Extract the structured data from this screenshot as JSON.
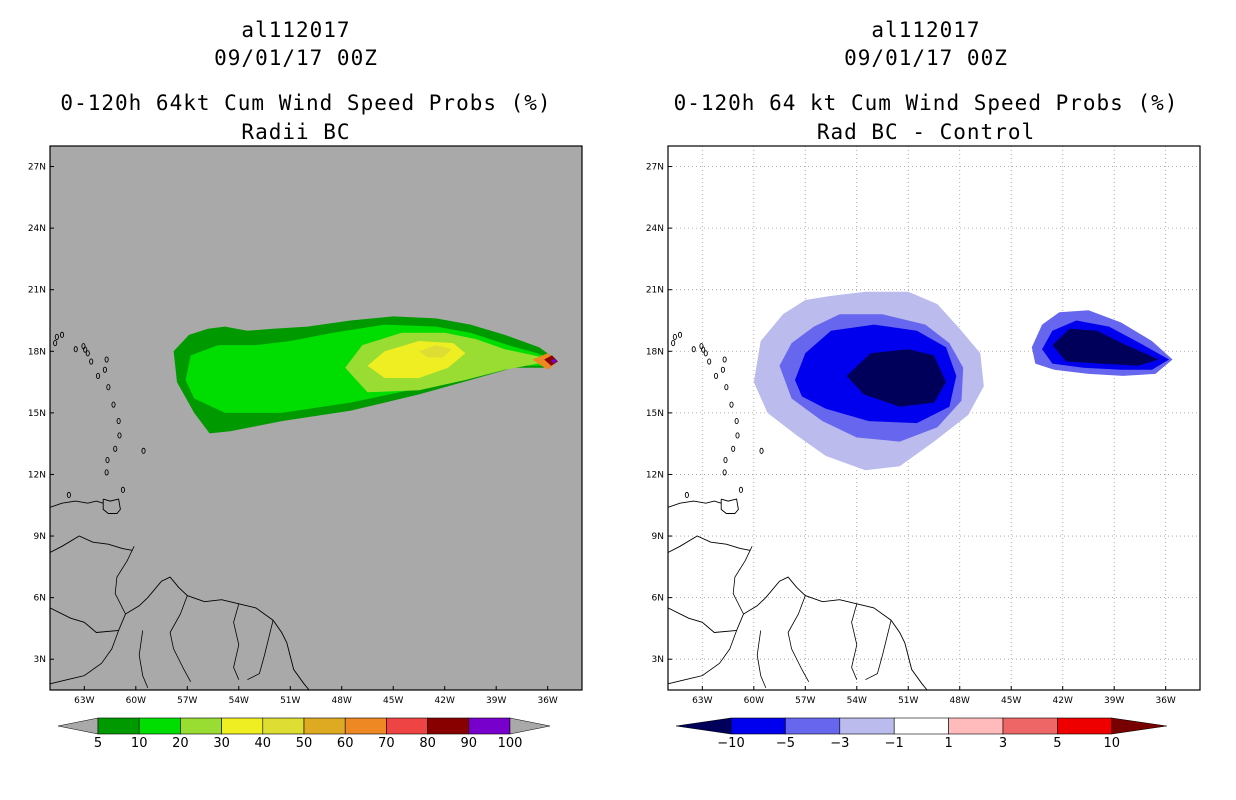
{
  "chart_data": [
    {
      "type": "heatmap",
      "title_lines": [
        "al112017",
        "09/01/17 00Z",
        "0-120h 64kt Cum Wind Speed Probs (%)",
        "Radii BC"
      ],
      "xlabel": "",
      "ylabel": "",
      "x_ticks": [
        "63W",
        "60W",
        "57W",
        "54W",
        "51W",
        "48W",
        "45W",
        "42W",
        "39W",
        "36W"
      ],
      "y_ticks": [
        "27N",
        "24N",
        "21N",
        "18N",
        "15N",
        "12N",
        "9N",
        "6N",
        "3N"
      ],
      "xlim": [
        -65,
        -34
      ],
      "ylim": [
        1.5,
        28
      ],
      "background_color": "#a9a9a9",
      "grid": false,
      "colorbar": {
        "labels": [
          "5",
          "10",
          "20",
          "30",
          "40",
          "50",
          "60",
          "70",
          "80",
          "90",
          "100"
        ],
        "colors": [
          "#009900",
          "#00dd00",
          "#99dd33",
          "#eeee22",
          "#dddd33",
          "#ddaa22",
          "#ee8822",
          "#ee4444",
          "#880000",
          "#7700cc"
        ]
      },
      "fields": [
        {
          "level": "5",
          "color": "#009900",
          "polygon": [
            [
              -57.8,
              18.0
            ],
            [
              -56.9,
              18.8
            ],
            [
              -55.8,
              19.1
            ],
            [
              -54.8,
              19.2
            ],
            [
              -53.5,
              19.0
            ],
            [
              -52,
              19.1
            ],
            [
              -50,
              19.2
            ],
            [
              -47.5,
              19.5
            ],
            [
              -45,
              19.7
            ],
            [
              -42.5,
              19.6
            ],
            [
              -40.5,
              19.3
            ],
            [
              -38.5,
              18.8
            ],
            [
              -36.5,
              18.2
            ],
            [
              -35.5,
              17.6
            ],
            [
              -36.2,
              17.2
            ],
            [
              -38,
              17.2
            ],
            [
              -40.5,
              16.6
            ],
            [
              -43.5,
              15.9
            ],
            [
              -47.5,
              15.1
            ],
            [
              -51.5,
              14.6
            ],
            [
              -54.5,
              14.1
            ],
            [
              -55.7,
              14.0
            ],
            [
              -56.6,
              15.0
            ],
            [
              -57.6,
              16.5
            ]
          ]
        },
        {
          "level": "10",
          "color": "#00dd00",
          "polygon": [
            [
              -56.8,
              17.8
            ],
            [
              -55.2,
              18.3
            ],
            [
              -53,
              18.3
            ],
            [
              -51,
              18.5
            ],
            [
              -48.5,
              18.9
            ],
            [
              -45.5,
              19.3
            ],
            [
              -42.5,
              19.2
            ],
            [
              -40.5,
              18.9
            ],
            [
              -38.3,
              18.3
            ],
            [
              -36.6,
              17.9
            ],
            [
              -35.7,
              17.6
            ],
            [
              -36.3,
              17.3
            ],
            [
              -38,
              17.3
            ],
            [
              -40.5,
              16.8
            ],
            [
              -43.5,
              16.2
            ],
            [
              -47.5,
              15.5
            ],
            [
              -51.5,
              15.0
            ],
            [
              -54.8,
              15.0
            ],
            [
              -56.6,
              15.7
            ],
            [
              -57.1,
              16.6
            ]
          ]
        },
        {
          "level": "20",
          "color": "#99dd33",
          "polygon": [
            [
              -47.8,
              17.2
            ],
            [
              -46.8,
              18.3
            ],
            [
              -44.5,
              18.9
            ],
            [
              -42,
              18.9
            ],
            [
              -40.2,
              18.6
            ],
            [
              -38.5,
              18.1
            ],
            [
              -36.8,
              17.8
            ],
            [
              -35.8,
              17.6
            ],
            [
              -36.6,
              17.4
            ],
            [
              -38.5,
              17.1
            ],
            [
              -40.8,
              16.6
            ],
            [
              -43.5,
              16.1
            ],
            [
              -46.5,
              16.0
            ]
          ]
        },
        {
          "level": "30",
          "color": "#eeee22",
          "polygon": [
            [
              -46.5,
              17.3
            ],
            [
              -45.5,
              18.0
            ],
            [
              -43.5,
              18.5
            ],
            [
              -41.5,
              18.4
            ],
            [
              -40.8,
              17.9
            ],
            [
              -41.8,
              17.2
            ],
            [
              -43.5,
              16.7
            ],
            [
              -45.5,
              16.7
            ]
          ]
        },
        {
          "level": "40",
          "color": "#dddd33",
          "polygon": [
            [
              -43.5,
              18.0
            ],
            [
              -42.5,
              18.3
            ],
            [
              -41.6,
              18.1
            ],
            [
              -42.1,
              17.7
            ],
            [
              -43.0,
              17.7
            ]
          ]
        },
        {
          "level": "60",
          "color": "#ee8822",
          "polygon": [
            [
              -36.9,
              17.6
            ],
            [
              -36.0,
              17.9
            ],
            [
              -35.4,
              17.5
            ],
            [
              -36.0,
              17.1
            ]
          ]
        },
        {
          "level": "80",
          "color": "#880000",
          "polygon": [
            [
              -36.2,
              17.6
            ],
            [
              -35.75,
              17.8
            ],
            [
              -35.4,
              17.5
            ],
            [
              -35.8,
              17.3
            ]
          ]
        },
        {
          "level": "90",
          "color": "#7700cc",
          "polygon": [
            [
              -35.8,
              17.55
            ],
            [
              -35.6,
              17.65
            ],
            [
              -35.45,
              17.5
            ],
            [
              -35.65,
              17.4
            ]
          ]
        }
      ]
    },
    {
      "type": "heatmap",
      "title_lines": [
        "al112017",
        "09/01/17 00Z",
        "0-120h 64 kt Cum Wind Speed Probs (%)",
        "Rad BC - Control"
      ],
      "xlabel": "",
      "ylabel": "",
      "x_ticks": [
        "63W",
        "60W",
        "57W",
        "54W",
        "51W",
        "48W",
        "45W",
        "42W",
        "39W",
        "36W"
      ],
      "y_ticks": [
        "27N",
        "24N",
        "21N",
        "18N",
        "15N",
        "12N",
        "9N",
        "6N",
        "3N"
      ],
      "xlim": [
        -65,
        -34
      ],
      "ylim": [
        1.5,
        28
      ],
      "background_color": "#ffffff",
      "grid": true,
      "colorbar": {
        "labels": [
          "-10",
          "-5",
          "-3",
          "-1",
          "1",
          "3",
          "5",
          "10"
        ],
        "colors": [
          "#00005a",
          "#0000ee",
          "#6666ee",
          "#bbbbee",
          "#ffffff",
          "#ffbbbb",
          "#ee6666",
          "#ee0000",
          "#770000"
        ]
      },
      "fields": [
        {
          "level": "-1",
          "color": "#bbbbee",
          "polygon": [
            [
              -60,
              16.5
            ],
            [
              -59.6,
              18.5
            ],
            [
              -58.3,
              19.8
            ],
            [
              -57,
              20.5
            ],
            [
              -55.5,
              20.7
            ],
            [
              -53.5,
              20.9
            ],
            [
              -51,
              20.9
            ],
            [
              -49.3,
              20.3
            ],
            [
              -48,
              19.1
            ],
            [
              -46.8,
              17.9
            ],
            [
              -46.6,
              16.3
            ],
            [
              -47.5,
              14.9
            ],
            [
              -49.5,
              13.6
            ],
            [
              -51.5,
              12.4
            ],
            [
              -53.5,
              12.2
            ],
            [
              -55.8,
              12.9
            ],
            [
              -57.5,
              13.9
            ],
            [
              -59.2,
              15.0
            ]
          ]
        },
        {
          "level": "-3",
          "color": "#6666ee",
          "polygon": [
            [
              -58.5,
              17.3
            ],
            [
              -57.8,
              18.4
            ],
            [
              -56.5,
              19.2
            ],
            [
              -55,
              19.8
            ],
            [
              -52.5,
              19.8
            ],
            [
              -50,
              19.3
            ],
            [
              -48.6,
              18.4
            ],
            [
              -47.8,
              17.2
            ],
            [
              -47.9,
              15.6
            ],
            [
              -49.3,
              14.3
            ],
            [
              -51.5,
              13.6
            ],
            [
              -54,
              13.8
            ],
            [
              -56,
              14.6
            ],
            [
              -57.8,
              15.7
            ]
          ]
        },
        {
          "level": "-5",
          "color": "#0000ee",
          "polygon": [
            [
              -57.6,
              16.6
            ],
            [
              -57,
              17.9
            ],
            [
              -55.5,
              19.0
            ],
            [
              -53,
              19.3
            ],
            [
              -50.5,
              19.0
            ],
            [
              -48.8,
              18.2
            ],
            [
              -48.2,
              16.8
            ],
            [
              -48.6,
              15.3
            ],
            [
              -50.5,
              14.5
            ],
            [
              -53.3,
              14.6
            ],
            [
              -55.8,
              15.2
            ],
            [
              -57.2,
              15.8
            ]
          ]
        },
        {
          "level": "-10",
          "color": "#00005a",
          "polygon": [
            [
              -54.6,
              16.8
            ],
            [
              -53.2,
              17.9
            ],
            [
              -51,
              18.1
            ],
            [
              -49.5,
              17.8
            ],
            [
              -48.8,
              16.5
            ],
            [
              -49.5,
              15.5
            ],
            [
              -51.5,
              15.3
            ],
            [
              -53.6,
              15.9
            ]
          ]
        },
        {
          "level": "-3",
          "color": "#6666ee",
          "polygon": [
            [
              -43.8,
              18.2
            ],
            [
              -43.2,
              19.3
            ],
            [
              -42.2,
              19.9
            ],
            [
              -40.5,
              20.0
            ],
            [
              -38.6,
              19.4
            ],
            [
              -36.8,
              18.5
            ],
            [
              -35.6,
              17.6
            ],
            [
              -36.6,
              16.9
            ],
            [
              -38.5,
              16.8
            ],
            [
              -40.5,
              16.9
            ],
            [
              -42.5,
              17.1
            ],
            [
              -43.6,
              17.4
            ]
          ]
        },
        {
          "level": "-5",
          "color": "#0000ee",
          "polygon": [
            [
              -43.2,
              18.1
            ],
            [
              -42.6,
              19.0
            ],
            [
              -41.2,
              19.5
            ],
            [
              -39.3,
              19.2
            ],
            [
              -37.5,
              18.4
            ],
            [
              -35.8,
              17.6
            ],
            [
              -36.8,
              17.1
            ],
            [
              -38.6,
              17.1
            ],
            [
              -40.8,
              17.2
            ],
            [
              -42.6,
              17.4
            ]
          ]
        },
        {
          "level": "-10",
          "color": "#00005a",
          "polygon": [
            [
              -42.6,
              18.3
            ],
            [
              -41.6,
              19.1
            ],
            [
              -40.0,
              19.0
            ],
            [
              -38.3,
              18.3
            ],
            [
              -36.4,
              17.6
            ],
            [
              -37.6,
              17.3
            ],
            [
              -39.8,
              17.4
            ],
            [
              -41.8,
              17.5
            ]
          ]
        }
      ]
    }
  ]
}
